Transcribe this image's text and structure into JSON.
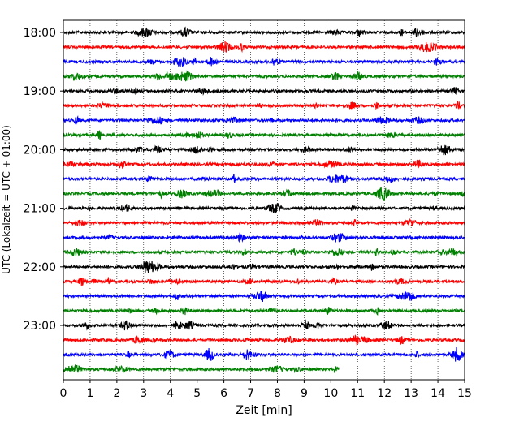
{
  "chart_data": {
    "type": "line",
    "title": "",
    "xlabel": "Zeit  [min]",
    "ylabel": "UTC (Lokalzeit = UTC + 01:00)",
    "xlim": [
      0,
      15
    ],
    "x_ticks": [
      0,
      1,
      2,
      3,
      4,
      5,
      6,
      7,
      8,
      9,
      10,
      11,
      12,
      13,
      14,
      15
    ],
    "x_tick_labels": [
      "0",
      "1",
      "2",
      "3",
      "4",
      "5",
      "6",
      "7",
      "8",
      "9",
      "10",
      "11",
      "12",
      "13",
      "14",
      "15"
    ],
    "y_tick_labels": [
      "18:00",
      "19:00",
      "20:00",
      "21:00",
      "22:00",
      "23:00"
    ],
    "grid": "vertical dotted",
    "row_interval_min": 15,
    "colors": [
      "#000000",
      "#ff0000",
      "#0000ff",
      "#008000"
    ],
    "rows": [
      {
        "start": "18:00",
        "end_min": 15,
        "color": "#000000"
      },
      {
        "start": "18:15",
        "end_min": 15,
        "color": "#ff0000"
      },
      {
        "start": "18:30",
        "end_min": 15,
        "color": "#0000ff"
      },
      {
        "start": "18:45",
        "end_min": 15,
        "color": "#008000"
      },
      {
        "start": "19:00",
        "end_min": 15,
        "color": "#000000"
      },
      {
        "start": "19:15",
        "end_min": 15,
        "color": "#ff0000"
      },
      {
        "start": "19:30",
        "end_min": 15,
        "color": "#0000ff"
      },
      {
        "start": "19:45",
        "end_min": 15,
        "color": "#008000"
      },
      {
        "start": "20:00",
        "end_min": 15,
        "color": "#000000"
      },
      {
        "start": "20:15",
        "end_min": 15,
        "color": "#ff0000"
      },
      {
        "start": "20:30",
        "end_min": 15,
        "color": "#0000ff"
      },
      {
        "start": "20:45",
        "end_min": 15,
        "color": "#008000"
      },
      {
        "start": "21:00",
        "end_min": 15,
        "color": "#000000"
      },
      {
        "start": "21:15",
        "end_min": 15,
        "color": "#ff0000"
      },
      {
        "start": "21:30",
        "end_min": 15,
        "color": "#0000ff"
      },
      {
        "start": "21:45",
        "end_min": 15,
        "color": "#008000"
      },
      {
        "start": "22:00",
        "end_min": 15,
        "color": "#000000"
      },
      {
        "start": "22:15",
        "end_min": 15,
        "color": "#ff0000"
      },
      {
        "start": "22:30",
        "end_min": 15,
        "color": "#0000ff"
      },
      {
        "start": "22:45",
        "end_min": 15,
        "color": "#008000"
      },
      {
        "start": "23:00",
        "end_min": 15,
        "color": "#000000"
      },
      {
        "start": "23:15",
        "end_min": 15,
        "color": "#ff0000"
      },
      {
        "start": "23:30",
        "end_min": 15,
        "color": "#0000ff"
      },
      {
        "start": "23:45",
        "end_min": 10.3,
        "color": "#008000"
      }
    ]
  }
}
